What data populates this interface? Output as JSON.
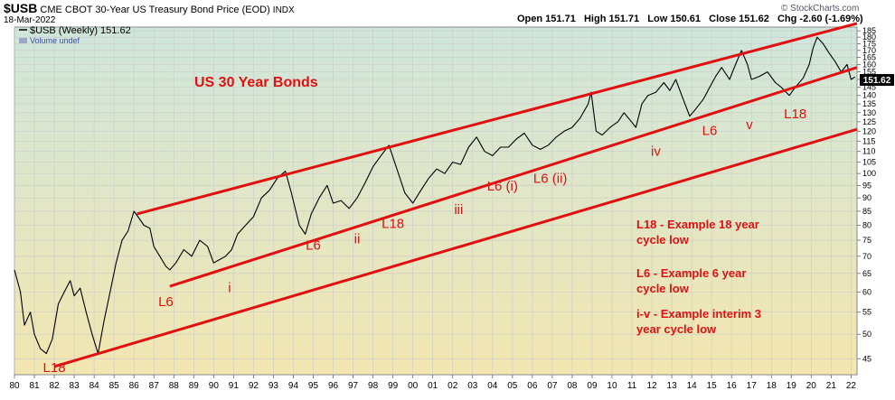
{
  "header": {
    "symbol": "$USB",
    "description": "CME CBOT 30-Year US Treasury Bond Price (EOD)",
    "exchange": "INDX",
    "date": "18-Mar-2022",
    "quote_line": "Open 151.71   High 151.71   Low 150.61   Close 151.62   Chg -2.60 (-1.69%)",
    "watermark": "© StockCharts.com"
  },
  "legend": {
    "series_label": "$USB (Weekly) 151.62",
    "volume_label": "Volume undef"
  },
  "price_tag": "151.62",
  "colors": {
    "line": "#e01010",
    "text": "#e01010",
    "price_line": "#000000",
    "bg_top": "#cfe6dc",
    "bg_bottom": "#f3e6b0"
  },
  "chart_data": {
    "type": "line",
    "title": "US 30 Year Bonds",
    "y_scale": "log",
    "ylim": [
      42,
      188
    ],
    "xlim": [
      1980,
      2022.3
    ],
    "y_ticks": [
      45,
      50,
      55,
      60,
      65,
      70,
      75,
      80,
      85,
      90,
      95,
      100,
      105,
      110,
      115,
      120,
      125,
      130,
      135,
      140,
      145,
      150,
      155,
      160,
      165,
      170,
      175,
      180,
      185
    ],
    "x_tick_labels": [
      "80",
      "81",
      "82",
      "83",
      "84",
      "85",
      "86",
      "87",
      "88",
      "89",
      "90",
      "91",
      "92",
      "93",
      "94",
      "95",
      "96",
      "97",
      "98",
      "99",
      "00",
      "01",
      "02",
      "03",
      "04",
      "05",
      "06",
      "07",
      "08",
      "09",
      "10",
      "11",
      "12",
      "13",
      "14",
      "15",
      "16",
      "17",
      "18",
      "19",
      "20",
      "21",
      "22"
    ],
    "series": [
      {
        "name": "$USB (Weekly)",
        "x": [
          1980.0,
          1980.3,
          1980.5,
          1980.8,
          1981.0,
          1981.3,
          1981.6,
          1981.9,
          1982.2,
          1982.5,
          1982.8,
          1983.0,
          1983.3,
          1983.6,
          1983.9,
          1984.2,
          1984.5,
          1984.8,
          1985.1,
          1985.4,
          1985.7,
          1986.0,
          1986.2,
          1986.5,
          1986.8,
          1987.0,
          1987.3,
          1987.6,
          1987.8,
          1988.1,
          1988.5,
          1988.9,
          1989.3,
          1989.7,
          1990.0,
          1990.3,
          1990.6,
          1990.9,
          1991.2,
          1991.6,
          1992.0,
          1992.4,
          1992.8,
          1993.2,
          1993.6,
          1993.9,
          1994.3,
          1994.6,
          1994.9,
          1995.3,
          1995.7,
          1996.0,
          1996.4,
          1996.8,
          1997.2,
          1997.6,
          1998.0,
          1998.4,
          1998.8,
          1999.2,
          1999.6,
          2000.0,
          2000.4,
          2000.8,
          2001.2,
          2001.6,
          2002.0,
          2002.4,
          2002.8,
          2003.2,
          2003.6,
          2004.0,
          2004.4,
          2004.8,
          2005.2,
          2005.6,
          2006.0,
          2006.4,
          2006.8,
          2007.2,
          2007.6,
          2008.0,
          2008.4,
          2008.8,
          2008.95,
          2009.2,
          2009.5,
          2009.9,
          2010.3,
          2010.6,
          2010.9,
          2011.2,
          2011.5,
          2011.8,
          2012.2,
          2012.6,
          2012.9,
          2013.2,
          2013.5,
          2013.9,
          2014.2,
          2014.6,
          2014.9,
          2015.2,
          2015.5,
          2015.9,
          2016.2,
          2016.5,
          2016.8,
          2017.0,
          2017.4,
          2017.8,
          2018.2,
          2018.5,
          2018.9,
          2019.2,
          2019.6,
          2019.9,
          2020.1,
          2020.3,
          2020.6,
          2020.9,
          2021.2,
          2021.5,
          2021.8,
          2022.0,
          2022.2
        ],
        "y": [
          66,
          60,
          52,
          55,
          50,
          47,
          46,
          49,
          57,
          60,
          63,
          59,
          61,
          55,
          50,
          46,
          53,
          60,
          68,
          75,
          78,
          85,
          83,
          80,
          79,
          73,
          70,
          67,
          66,
          68,
          72,
          70,
          75,
          73,
          68,
          69,
          70,
          72,
          77,
          80,
          83,
          90,
          93,
          98,
          101,
          92,
          80,
          77,
          84,
          90,
          95,
          88,
          89,
          86,
          90,
          96,
          103,
          108,
          113,
          102,
          92,
          88,
          93,
          98,
          102,
          100,
          105,
          104,
          112,
          117,
          110,
          108,
          112,
          112,
          116,
          119,
          113,
          111,
          113,
          117,
          120,
          122,
          127,
          135,
          142,
          120,
          118,
          122,
          125,
          130,
          126,
          122,
          135,
          140,
          142,
          148,
          143,
          150,
          140,
          128,
          132,
          138,
          145,
          152,
          158,
          150,
          160,
          170,
          160,
          150,
          152,
          155,
          148,
          145,
          140,
          145,
          151,
          160,
          172,
          180,
          175,
          168,
          162,
          155,
          160,
          150,
          151.62
        ]
      }
    ],
    "annotations": [
      {
        "text": "L18",
        "x": 1982.0,
        "y": 42.5
      },
      {
        "text": "L6",
        "x": 1987.6,
        "y": 56.5
      },
      {
        "text": "i",
        "x": 1990.8,
        "y": 60
      },
      {
        "text": "L6",
        "x": 1995.0,
        "y": 72
      },
      {
        "text": "ii",
        "x": 1997.2,
        "y": 74
      },
      {
        "text": "L18",
        "x": 1999.0,
        "y": 79
      },
      {
        "text": "iii",
        "x": 2002.3,
        "y": 84
      },
      {
        "text": "L6 (i)",
        "x": 2004.5,
        "y": 93
      },
      {
        "text": "L6 (ii)",
        "x": 2006.9,
        "y": 96
      },
      {
        "text": "iv",
        "x": 2012.2,
        "y": 108
      },
      {
        "text": "L6",
        "x": 2014.9,
        "y": 118
      },
      {
        "text": "v",
        "x": 2016.9,
        "y": 121
      },
      {
        "text": "L18",
        "x": 2019.2,
        "y": 127
      }
    ],
    "notes": [
      "L18 - Example 18 year",
      "cycle low",
      "L6 - Example 6 year",
      "cycle low",
      "i-v - Example interim 3",
      "year cycle low"
    ],
    "trend_lines": [
      {
        "from": [
          1986.15,
          84
        ],
        "to": [
          2022.3,
          191
        ]
      },
      {
        "from": [
          1987.8,
          61.5
        ],
        "to": [
          2022.3,
          158
        ]
      },
      {
        "from": [
          1982.0,
          43.5
        ],
        "to": [
          2022.3,
          121
        ]
      }
    ]
  }
}
